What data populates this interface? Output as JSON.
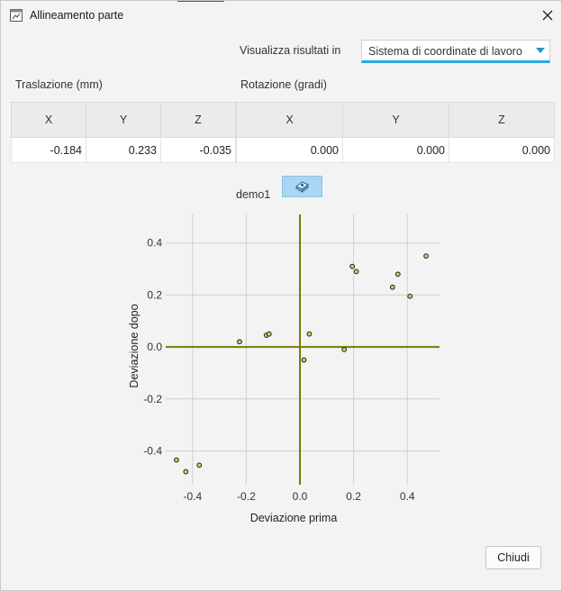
{
  "window": {
    "title": "Allineamento parte",
    "close_icon": "close-icon"
  },
  "view": {
    "label": "Visualizza risultati in",
    "selected": "Sistema di coordinate di lavoro"
  },
  "translation": {
    "label": "Traslazione (mm)",
    "headers": [
      "X",
      "Y",
      "Z"
    ],
    "values": [
      "-0.184",
      "0.233",
      "-0.035"
    ]
  },
  "rotation": {
    "label": "Rotazione (gradi)",
    "headers": [
      "X",
      "Y",
      "Z"
    ],
    "values": [
      "0.000",
      "0.000",
      "0.000"
    ]
  },
  "part": {
    "name": "demo1",
    "icon": "part-view-icon"
  },
  "chart_data": {
    "type": "scatter",
    "xlabel": "Deviazione prima",
    "ylabel": "Deviazione dopo",
    "xlim": [
      -0.5,
      0.52
    ],
    "ylim": [
      -0.53,
      0.51
    ],
    "xticks": [
      -0.4,
      -0.2,
      0.0,
      0.2,
      0.4
    ],
    "xtick_labels": [
      "-0.4",
      "-0.2",
      "0.0",
      "0.2",
      "0.4"
    ],
    "yticks": [
      0.4,
      0.2,
      0.0,
      -0.2,
      -0.4
    ],
    "ytick_labels": [
      "0.4",
      "0.2",
      "0.0",
      "-0.2",
      "-0.4"
    ],
    "grid": true,
    "axis_line_color": "#7a7a00",
    "point_color": "#c4d36a",
    "points": [
      {
        "x": -0.46,
        "y": -0.435
      },
      {
        "x": -0.425,
        "y": -0.48
      },
      {
        "x": -0.375,
        "y": -0.455
      },
      {
        "x": -0.225,
        "y": 0.02
      },
      {
        "x": -0.125,
        "y": 0.045
      },
      {
        "x": -0.115,
        "y": 0.05
      },
      {
        "x": 0.015,
        "y": -0.05
      },
      {
        "x": 0.035,
        "y": 0.05
      },
      {
        "x": 0.165,
        "y": -0.01
      },
      {
        "x": 0.195,
        "y": 0.31
      },
      {
        "x": 0.21,
        "y": 0.29
      },
      {
        "x": 0.345,
        "y": 0.23
      },
      {
        "x": 0.365,
        "y": 0.28
      },
      {
        "x": 0.41,
        "y": 0.195
      },
      {
        "x": 0.47,
        "y": 0.35
      }
    ]
  },
  "footer": {
    "close_label": "Chiudi"
  }
}
